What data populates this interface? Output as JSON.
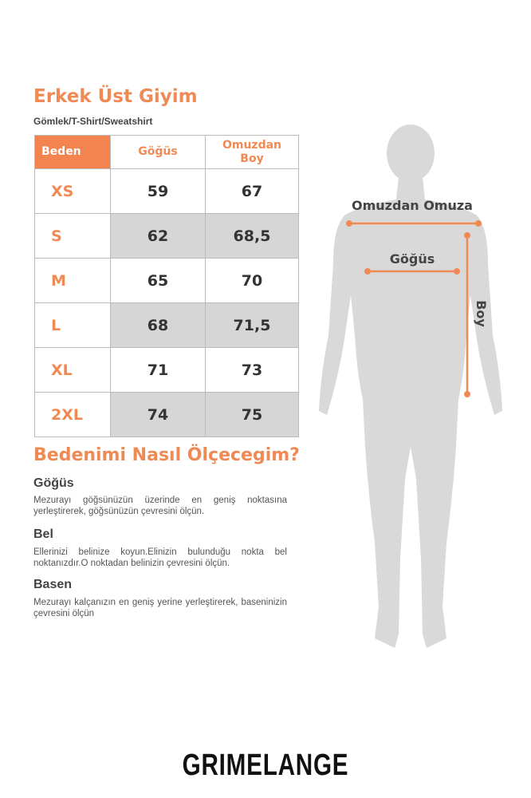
{
  "title": "Erkek Üst Giyim",
  "subtitle": "Gömlek/T-Shirt/Sweatshirt",
  "table": {
    "headers": [
      "Beden",
      "Göğüs",
      "Omuzdan Boy"
    ],
    "rows": [
      {
        "size": "XS",
        "chest": "59",
        "length": "67"
      },
      {
        "size": "S",
        "chest": "62",
        "length": "68,5"
      },
      {
        "size": "M",
        "chest": "65",
        "length": "70"
      },
      {
        "size": "L",
        "chest": "68",
        "length": "71,5"
      },
      {
        "size": "XL",
        "chest": "71",
        "length": "73"
      },
      {
        "size": "2XL",
        "chest": "74",
        "length": "75"
      }
    ]
  },
  "howto": {
    "title": "Bedenimi Nasıl Ölçecegim?",
    "sections": [
      {
        "heading": "Göğüs",
        "text": "Mezurayı göğsünüzün üzerinde en geniş noktasına yerleştirerek, göğsünüzün çevresini ölçün."
      },
      {
        "heading": "Bel",
        "text": "Ellerinizi belinize koyun.Elinizin bulunduğu nokta bel noktanızdır.O noktadan belinizin çevresini ölçün."
      },
      {
        "heading": "Basen",
        "text": "Mezurayı kalçanızın en geniş yerine yerleştirerek, baseninizin çevresini ölçün"
      }
    ]
  },
  "figure": {
    "shoulder_label": "Omuzdan Omuza",
    "chest_label": "Göğüs",
    "length_label": "Boy",
    "accent": "#f08a55",
    "silhouette": "#d9d9d9"
  },
  "brand": "GRIMELANGE"
}
